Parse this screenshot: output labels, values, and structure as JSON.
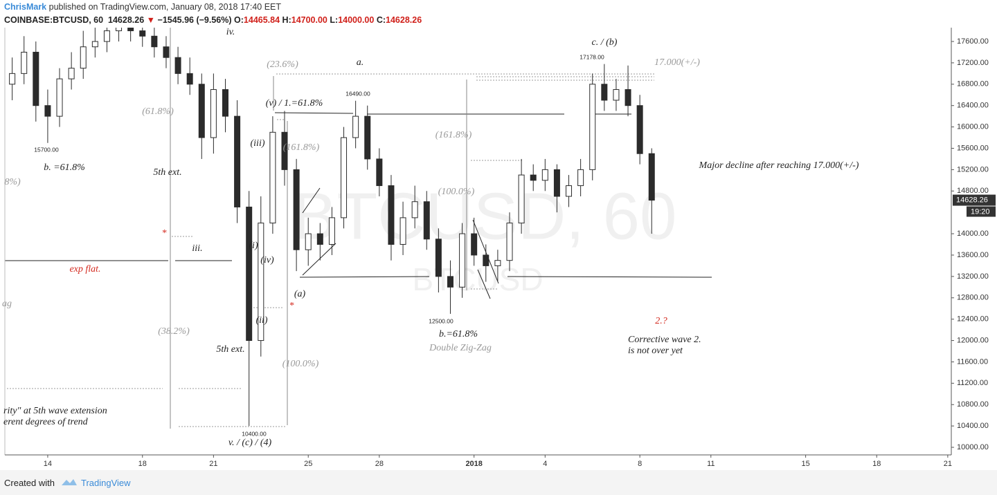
{
  "header": {
    "author": "ChrisMark",
    "published": " published on TradingView.com, January 08, 2018 17:40 EET",
    "symbol": "COINBASE:BTCUSD, 60",
    "last": "14628.26",
    "arrow": "▼",
    "change": "−1545.96 (−9.56%)",
    "ohlc": [
      {
        "label": "O:",
        "value": "14465.84"
      },
      {
        "label": "H:",
        "value": "14700.00"
      },
      {
        "label": "L:",
        "value": "14000.00"
      },
      {
        "label": "C:",
        "value": "14628.26"
      }
    ]
  },
  "chart_data": {
    "type": "candlestick",
    "watermark": "BTCUSD, 60",
    "watermark_sub": "BTCUSD",
    "x": [
      -1.5,
      -1,
      -0.5,
      0,
      0.5,
      1,
      1.5,
      2,
      2.5,
      3,
      3.5,
      4,
      4.5,
      5,
      5.5,
      6,
      6.5,
      7,
      7.5,
      8,
      8.5,
      9,
      9.5,
      10,
      10.5,
      11,
      11.5,
      12,
      12.5,
      13,
      13.5,
      14,
      14.5,
      15,
      15.5,
      16,
      16.5,
      17,
      17.5,
      18,
      18.5,
      19,
      19.5,
      20,
      20.5,
      21,
      21.5,
      22,
      22.5,
      23,
      23.5,
      24,
      24.5,
      25,
      25.5
    ],
    "open": [
      16800,
      17000,
      17400,
      16400,
      16200,
      16900,
      17100,
      17500,
      17600,
      17800,
      17900,
      17800,
      17700,
      17500,
      17300,
      17000,
      16800,
      15800,
      16700,
      16200,
      14500,
      12000,
      14200,
      15900,
      15200,
      13700,
      14000,
      13800,
      14300,
      15800,
      16200,
      15400,
      14900,
      13800,
      14300,
      14600,
      13900,
      13200,
      13000,
      14000,
      13600,
      13400,
      13500,
      14200,
      15100,
      15000,
      15200,
      14700,
      14900,
      15200,
      16800,
      16500,
      16700,
      16400,
      15500
    ],
    "high": [
      17300,
      17700,
      17600,
      16700,
      17100,
      17400,
      17800,
      17900,
      18000,
      18100,
      18100,
      18000,
      17900,
      17700,
      17500,
      17300,
      17000,
      17000,
      16900,
      16500,
      14800,
      14700,
      16200,
      16300,
      15400,
      14300,
      14200,
      14500,
      16000,
      16490,
      16400,
      15600,
      15100,
      14600,
      14900,
      14800,
      14100,
      13500,
      14200,
      14300,
      13800,
      13700,
      14400,
      15400,
      15300,
      15400,
      15300,
      15100,
      15400,
      17000,
      17178,
      16900,
      17150,
      16600,
      15600
    ],
    "low": [
      16500,
      16800,
      16100,
      15700,
      16000,
      16700,
      16900,
      17300,
      17400,
      17600,
      17600,
      17500,
      17300,
      17100,
      16800,
      16600,
      15400,
      15500,
      15900,
      14200,
      10400,
      11700,
      14000,
      14900,
      13300,
      13400,
      13500,
      13600,
      14100,
      15600,
      15200,
      14700,
      13500,
      13600,
      14100,
      13700,
      12900,
      12500,
      12800,
      13400,
      13100,
      13100,
      13300,
      14000,
      14800,
      14800,
      14400,
      14500,
      14700,
      15000,
      16300,
      16300,
      16200,
      15300,
      14000
    ],
    "close": [
      17000,
      17400,
      16400,
      16200,
      16900,
      17100,
      17500,
      17600,
      17800,
      17900,
      17800,
      17700,
      17500,
      17300,
      17000,
      16800,
      15800,
      16700,
      16200,
      14500,
      12000,
      14200,
      15900,
      15200,
      13700,
      14000,
      13800,
      14300,
      15800,
      16200,
      15400,
      14900,
      13800,
      14300,
      14600,
      13900,
      13200,
      13000,
      14000,
      13600,
      13400,
      13500,
      14200,
      15100,
      15000,
      15200,
      14700,
      14900,
      15200,
      16800,
      16500,
      16700,
      16400,
      15500,
      14628.26
    ],
    "color": "#2b2b2b",
    "xlim": [
      -1.81,
      38.15
    ],
    "ylim": [
      9858,
      17859
    ],
    "xticks": [
      {
        "value": 0,
        "label": "14"
      },
      {
        "value": 4,
        "label": "18"
      },
      {
        "value": 7,
        "label": "21"
      },
      {
        "value": 11,
        "label": "25"
      },
      {
        "value": 14,
        "label": "28"
      },
      {
        "value": 18,
        "label": "2018"
      },
      {
        "value": 21,
        "label": "4"
      },
      {
        "value": 25,
        "label": "8"
      },
      {
        "value": 28,
        "label": "11"
      },
      {
        "value": 32,
        "label": "15"
      },
      {
        "value": 35,
        "label": "18"
      },
      {
        "value": 38,
        "label": "21"
      }
    ],
    "yticks": [
      {
        "value": 10000,
        "label": "10000.00"
      },
      {
        "value": 10400,
        "label": "10400.00"
      },
      {
        "value": 10800,
        "label": "10800.00"
      },
      {
        "value": 11200,
        "label": "11200.00"
      },
      {
        "value": 11600,
        "label": "11600.00"
      },
      {
        "value": 12000,
        "label": "12000.00"
      },
      {
        "value": 12400,
        "label": "12400.00"
      },
      {
        "value": 12800,
        "label": "12800.00"
      },
      {
        "value": 13200,
        "label": "13200.00"
      },
      {
        "value": 13600,
        "label": "13600.00"
      },
      {
        "value": 14000,
        "label": "14000.00"
      },
      {
        "value": 14800,
        "label": "14800.00"
      },
      {
        "value": 15200,
        "label": "15200.00"
      },
      {
        "value": 15600,
        "label": "15600.00"
      },
      {
        "value": 16000,
        "label": "16000.00"
      },
      {
        "value": 16400,
        "label": "16400.00"
      },
      {
        "value": 16800,
        "label": "16800.00"
      },
      {
        "value": 17200,
        "label": "17200.00"
      },
      {
        "value": 17600,
        "label": "17600.00"
      }
    ],
    "last_price": {
      "value": 14628.26,
      "label": "14628.26"
    },
    "countdown": "19:20",
    "annotations": [
      "iv.",
      "(23.6%)",
      "a.",
      "17.000(+/-)",
      "c. / (b)",
      "17178.00",
      "16490.00",
      "(v) / 1.=61.8%",
      "(61.8%)",
      "15700.00",
      "b. =61.8%",
      "(iii)",
      "(161.8%)",
      "(161.8%)",
      "5th  ext.",
      "8%)",
      "Major decline after reaching 17.000(+/-)",
      "(100.0%)",
      "*",
      "*",
      "iii.",
      "(i)",
      "(iv)",
      "exp flat.",
      "(a)",
      "ag",
      "(ii)",
      "12500.00",
      "2.?",
      "b.=61.8%",
      "Corrective wave 2.",
      "is not over yet",
      "Double Zig-Zag",
      "(38.2%)",
      "5th ext.",
      "(100.0%)",
      "rity\" at 5th wave extension",
      "erent degrees of trend",
      "10400.00",
      "v. / (c) / (4)"
    ]
  },
  "footer": {
    "created": "Created with",
    "brand": "TradingView"
  }
}
